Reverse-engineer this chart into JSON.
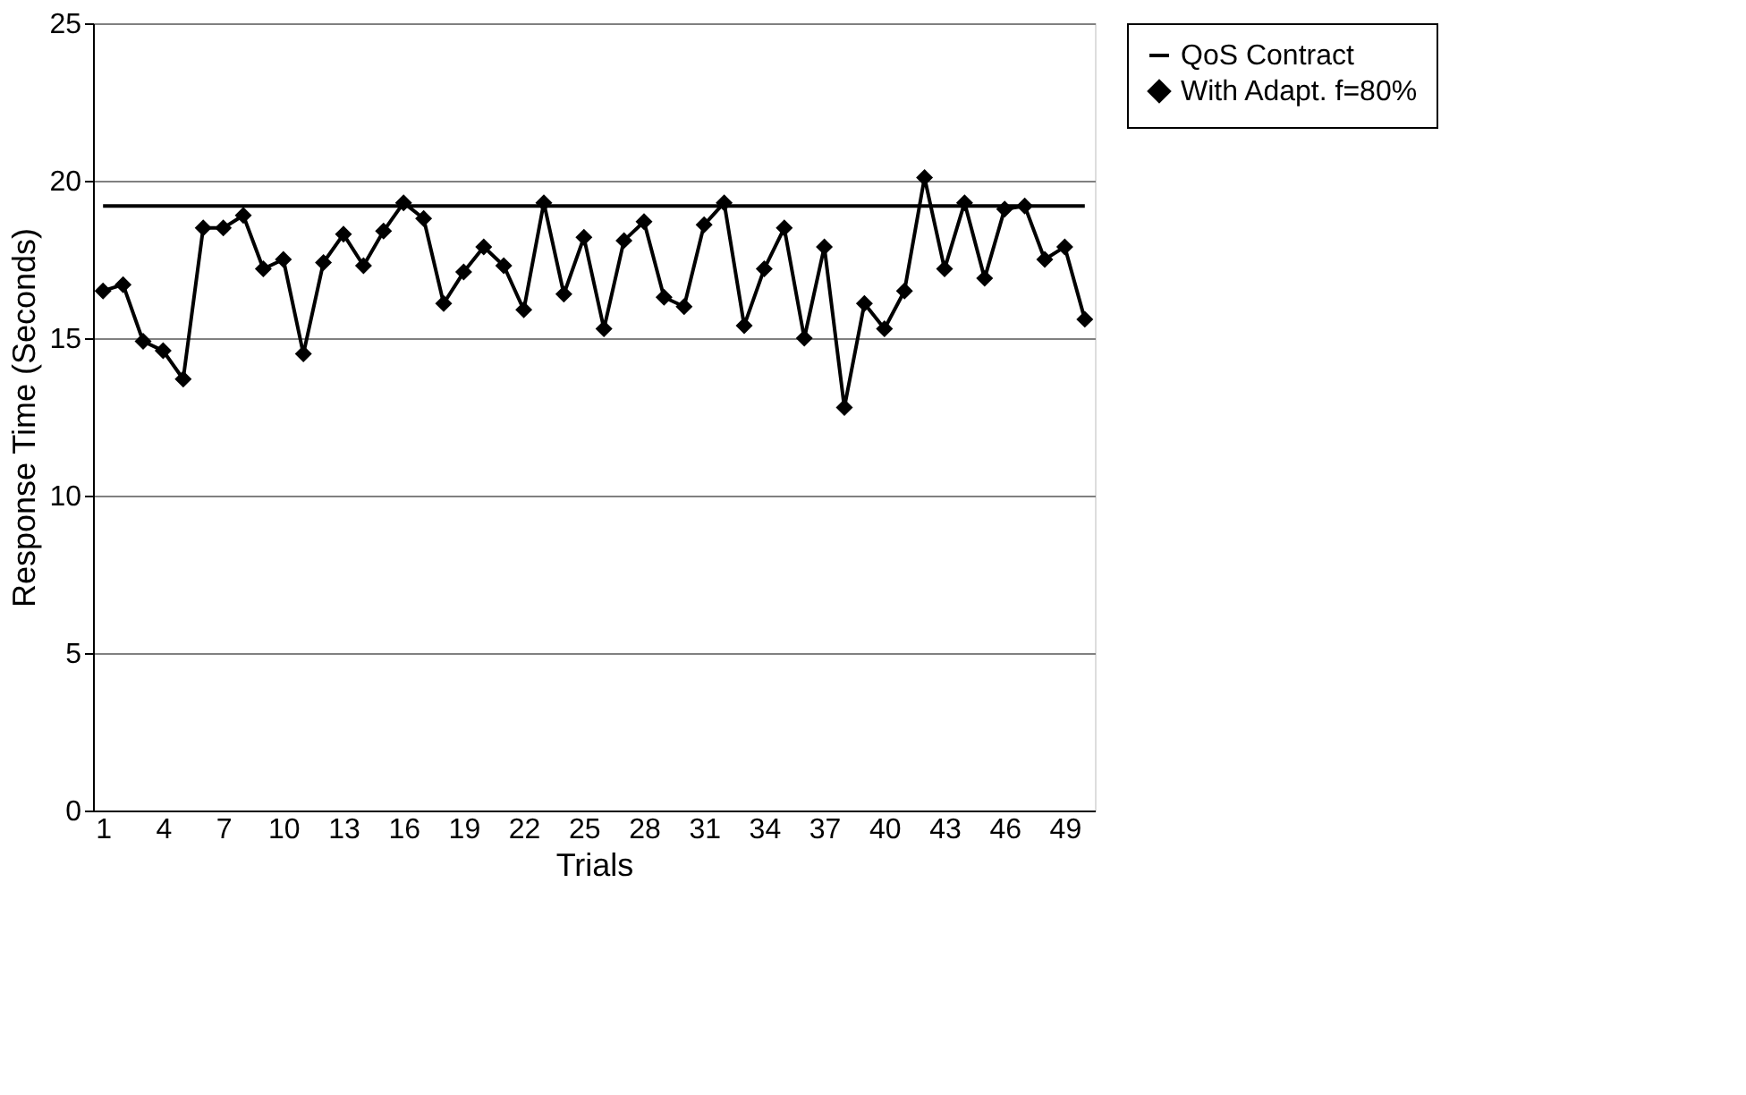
{
  "chart_data": {
    "type": "line",
    "xlabel": "Trials",
    "ylabel": "Response Time (Seconds)",
    "categories": [
      "1",
      null,
      null,
      "4",
      null,
      null,
      "7",
      null,
      null,
      "10",
      null,
      null,
      "13",
      null,
      null,
      "16",
      null,
      null,
      "19",
      null,
      null,
      "22",
      null,
      null,
      "25",
      null,
      null,
      "28",
      null,
      null,
      "31",
      null,
      null,
      "34",
      null,
      null,
      "37",
      null,
      null,
      "40",
      null,
      null,
      "43",
      null,
      null,
      "46",
      null,
      null,
      "49",
      null
    ],
    "series": [
      {
        "name": "QoS Contract",
        "color": "#000000",
        "marker": "none",
        "values": [
          19.2,
          19.2,
          19.2,
          19.2,
          19.2,
          19.2,
          19.2,
          19.2,
          19.2,
          19.2,
          19.2,
          19.2,
          19.2,
          19.2,
          19.2,
          19.2,
          19.2,
          19.2,
          19.2,
          19.2,
          19.2,
          19.2,
          19.2,
          19.2,
          19.2,
          19.2,
          19.2,
          19.2,
          19.2,
          19.2,
          19.2,
          19.2,
          19.2,
          19.2,
          19.2,
          19.2,
          19.2,
          19.2,
          19.2,
          19.2,
          19.2,
          19.2,
          19.2,
          19.2,
          19.2,
          19.2,
          19.2,
          19.2,
          19.2,
          19.2
        ]
      },
      {
        "name": "With Adapt. f=80%",
        "color": "#000000",
        "marker": "diamond",
        "values": [
          16.5,
          16.7,
          14.9,
          14.6,
          13.7,
          18.5,
          18.5,
          18.9,
          17.2,
          17.5,
          14.5,
          17.4,
          18.3,
          17.3,
          18.4,
          19.3,
          18.8,
          16.1,
          17.1,
          17.9,
          17.3,
          15.9,
          19.3,
          16.4,
          18.2,
          15.3,
          18.1,
          18.7,
          16.3,
          16.0,
          18.6,
          19.3,
          15.4,
          17.2,
          18.5,
          15.0,
          17.9,
          12.8,
          16.1,
          15.3,
          16.5,
          20.1,
          17.2,
          19.3,
          16.9,
          19.1,
          19.2,
          17.5,
          17.9,
          15.6
        ]
      }
    ],
    "ylim": [
      0,
      25
    ],
    "yticks": [
      0,
      5,
      10,
      15,
      20,
      25
    ],
    "grid": "y",
    "legend": "right"
  }
}
